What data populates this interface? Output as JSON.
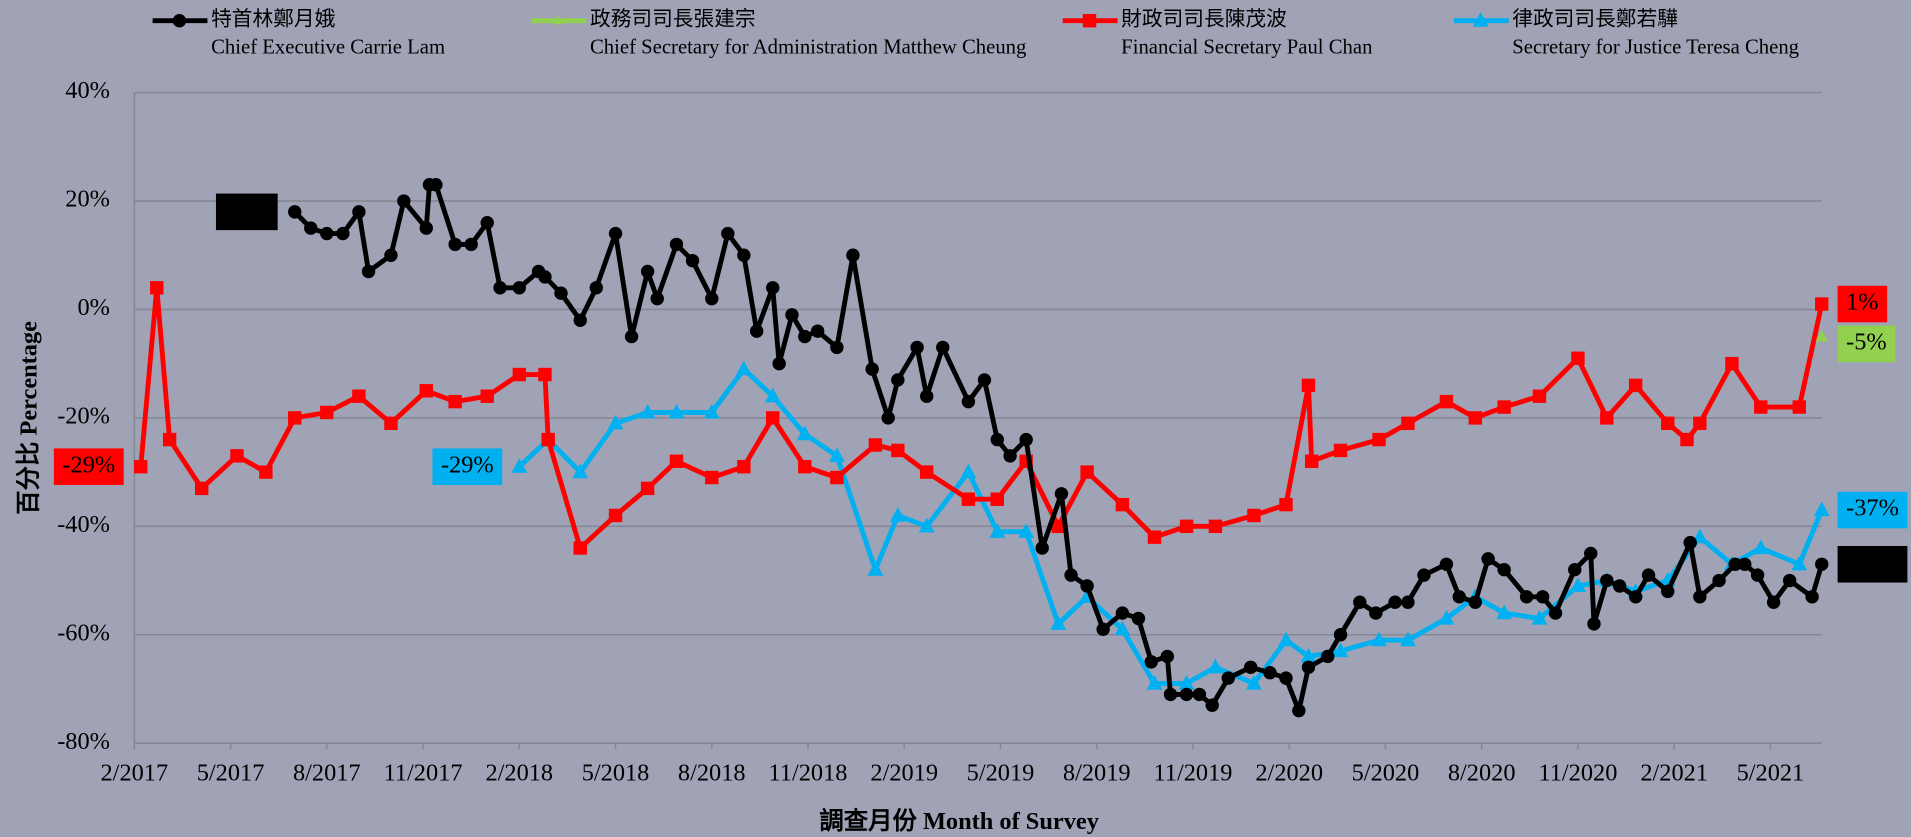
{
  "chart_data": {
    "type": "line",
    "x_label": "調查月份 Month of Survey",
    "y_label": "百分比 Percentage",
    "xlim": [
      0,
      52.6
    ],
    "xticks": [
      {
        "value": 0,
        "label": "2/2017"
      },
      {
        "value": 3,
        "label": "5/2017"
      },
      {
        "value": 6,
        "label": "8/2017"
      },
      {
        "value": 9,
        "label": "11/2017"
      },
      {
        "value": 12,
        "label": "2/2018"
      },
      {
        "value": 15,
        "label": "5/2018"
      },
      {
        "value": 18,
        "label": "8/2018"
      },
      {
        "value": 21,
        "label": "11/2018"
      },
      {
        "value": 24,
        "label": "2/2019"
      },
      {
        "value": 27,
        "label": "5/2019"
      },
      {
        "value": 30,
        "label": "8/2019"
      },
      {
        "value": 33,
        "label": "11/2019"
      },
      {
        "value": 36,
        "label": "2/2020"
      },
      {
        "value": 39,
        "label": "5/2020"
      },
      {
        "value": 42,
        "label": "8/2020"
      },
      {
        "value": 45,
        "label": "11/2020"
      },
      {
        "value": 48,
        "label": "2/2021"
      },
      {
        "value": 51,
        "label": "5/2021"
      }
    ],
    "ylim": [
      -80,
      40
    ],
    "yticks": [
      {
        "value": 40,
        "label": "40%"
      },
      {
        "value": 20,
        "label": "20%"
      },
      {
        "value": 0,
        "label": "0%"
      },
      {
        "value": -20,
        "label": "-20%"
      },
      {
        "value": -40,
        "label": "-40%"
      },
      {
        "value": -60,
        "label": "-60%"
      },
      {
        "value": -80,
        "label": "-80%"
      }
    ],
    "grid": true,
    "legend": "top",
    "series": [
      {
        "name": "特首林鄭月娥",
        "name_en": "Chief Executive Carrie Lam",
        "color": "#000000",
        "marker": "circle",
        "x": [
          5.0,
          5.5,
          6.0,
          6.5,
          7.0,
          7.3,
          8.0,
          8.4,
          9.1,
          9.2,
          9.4,
          10.0,
          10.5,
          11.0,
          11.4,
          12.0,
          12.6,
          12.8,
          13.3,
          13.9,
          14.4,
          15.0,
          15.5,
          16.0,
          16.3,
          16.9,
          17.4,
          18.0,
          18.5,
          19.0,
          19.4,
          19.9,
          20.1,
          20.5,
          20.9,
          21.3,
          21.9,
          22.4,
          23.0,
          23.5,
          23.8,
          24.4,
          24.7,
          25.2,
          26.0,
          26.5,
          26.9,
          27.3,
          27.8,
          28.3,
          28.9,
          29.2,
          29.7,
          30.2,
          30.8,
          31.3,
          31.7,
          32.2,
          32.3,
          32.8,
          33.2,
          33.6,
          34.1,
          34.8,
          35.4,
          35.9,
          36.3,
          36.6,
          37.2,
          37.6,
          38.2,
          38.7,
          39.3,
          39.7,
          40.2,
          40.9,
          41.3,
          41.8,
          42.2,
          42.7,
          43.4,
          43.9,
          44.3,
          44.9,
          45.4,
          45.5,
          45.9,
          46.3,
          46.8,
          47.2,
          47.8,
          48.5,
          48.8,
          49.4,
          49.9,
          50.2,
          50.6,
          51.1,
          51.6,
          52.3,
          52.6
        ],
        "values": [
          18,
          15,
          14,
          14,
          18,
          7,
          10,
          20,
          15,
          23,
          23,
          12,
          12,
          16,
          4,
          4,
          7,
          6,
          3,
          -2,
          4,
          14,
          -5,
          7,
          2,
          12,
          9,
          2,
          14,
          10,
          -4,
          4,
          -10,
          -1,
          -5,
          -4,
          -7,
          10,
          -11,
          -20,
          -13,
          -7,
          -16,
          -7,
          -17,
          -13,
          -24,
          -27,
          -24,
          -44,
          -34,
          -49,
          -51,
          -59,
          -56,
          -57,
          -65,
          -64,
          -71,
          -71,
          -71,
          -73,
          -68,
          -66,
          -67,
          -68,
          -74,
          -66,
          -64,
          -60,
          -54,
          -56,
          -54,
          -54,
          -49,
          -47,
          -53,
          -54,
          -46,
          -48,
          -53,
          -53,
          -56,
          -48,
          -45,
          -58,
          -50,
          -51,
          -53,
          -49,
          -52,
          -43,
          -53,
          -50,
          -47,
          -47,
          -49,
          -54,
          -50,
          -53,
          -47
        ],
        "value_labels": [
          "18%",
          null,
          null,
          null,
          null,
          null,
          null,
          null,
          null,
          null,
          null,
          null,
          null,
          null,
          null,
          null,
          null,
          null,
          null,
          null,
          null,
          null,
          null,
          null,
          null,
          null,
          null,
          null,
          null,
          null,
          null,
          null,
          null,
          null,
          null,
          null,
          null,
          null,
          null,
          null,
          null,
          null,
          null,
          null,
          null,
          null,
          null,
          null,
          null,
          null,
          null,
          null,
          null,
          null,
          null,
          null,
          null,
          null,
          null,
          null,
          null,
          null,
          null,
          null,
          null,
          null,
          null,
          null,
          null,
          null,
          null,
          null,
          null,
          null,
          null,
          null,
          null,
          null,
          null,
          null,
          null,
          null,
          null,
          null,
          null,
          null,
          null,
          null,
          null,
          null,
          null,
          null,
          null,
          null,
          null,
          null,
          null,
          null,
          null,
          null,
          "-47%"
        ]
      },
      {
        "name": "政務司司長張建宗",
        "name_en": "Chief Secretary for Administration Matthew Cheung",
        "color": "#92d050",
        "marker": "triangle",
        "x": [
          52.6
        ],
        "values": [
          -5
        ],
        "value_labels": [
          "-5%"
        ]
      },
      {
        "name": "財政司司長陳茂波",
        "name_en": "Financial Secretary Paul Chan",
        "color": "#ff0000",
        "marker": "square",
        "x": [
          0.2,
          0.7,
          1.1,
          2.1,
          3.2,
          4.1,
          5.0,
          6.0,
          7.0,
          8.0,
          9.1,
          10.0,
          11.0,
          12.0,
          12.8,
          12.9,
          13.9,
          15.0,
          16.0,
          16.9,
          18.0,
          19.0,
          19.9,
          20.9,
          21.9,
          23.1,
          23.8,
          24.7,
          26.0,
          26.9,
          27.8,
          28.8,
          29.7,
          30.8,
          31.8,
          32.8,
          33.7,
          34.9,
          35.9,
          36.6,
          36.7,
          37.6,
          38.8,
          39.7,
          40.9,
          41.8,
          42.7,
          43.8,
          45.0,
          45.9,
          46.8,
          47.8,
          48.4,
          48.8,
          49.8,
          50.7,
          51.9,
          52.6
        ],
        "values": [
          -29,
          4,
          -24,
          -33,
          -27,
          -30,
          -20,
          -19,
          -16,
          -21,
          -15,
          -17,
          -16,
          -12,
          -12,
          -24,
          -44,
          -38,
          -33,
          -28,
          -31,
          -29,
          -20,
          -29,
          -31,
          -25,
          -26,
          -30,
          -35,
          -35,
          -28,
          -40,
          -30,
          -36,
          -42,
          -40,
          -40,
          -38,
          -36,
          -14,
          -28,
          -26,
          -24,
          -21,
          -17,
          -20,
          -18,
          -16,
          -9,
          -20,
          -14,
          -21,
          -24,
          -21,
          -10,
          -18,
          -18,
          1
        ],
        "value_labels": [
          "-29%",
          null,
          null,
          null,
          null,
          null,
          null,
          null,
          null,
          null,
          null,
          null,
          null,
          null,
          null,
          null,
          null,
          null,
          null,
          null,
          null,
          null,
          null,
          null,
          null,
          null,
          null,
          null,
          null,
          null,
          null,
          null,
          null,
          null,
          null,
          null,
          null,
          null,
          null,
          null,
          null,
          null,
          null,
          null,
          null,
          null,
          null,
          null,
          null,
          null,
          null,
          null,
          null,
          null,
          null,
          null,
          null,
          "1%"
        ]
      },
      {
        "name": "律政司司長鄭若驊",
        "name_en": "Secretary for Justice Teresa Cheng",
        "color": "#00b0f0",
        "marker": "triangle",
        "x": [
          12.0,
          12.9,
          13.9,
          15.0,
          16.0,
          16.9,
          18.0,
          19.0,
          19.9,
          20.9,
          21.9,
          23.1,
          23.8,
          24.7,
          26.0,
          26.9,
          27.8,
          28.8,
          29.7,
          30.8,
          31.8,
          32.8,
          33.7,
          34.9,
          35.9,
          36.6,
          37.6,
          38.8,
          39.7,
          40.9,
          41.8,
          42.7,
          43.8,
          45.0,
          45.9,
          46.8,
          47.8,
          48.8,
          49.8,
          50.7,
          51.9,
          52.6
        ],
        "values": [
          -29,
          -24,
          -30,
          -21,
          -19,
          -19,
          -19,
          -11,
          -16,
          -23,
          -27,
          -48,
          -38,
          -40,
          -30,
          -41,
          -41,
          -58,
          -53,
          -59,
          -69,
          -69,
          -66,
          -69,
          -61,
          -64,
          -63,
          -61,
          -61,
          -57,
          -53,
          -56,
          -57,
          -51,
          -50,
          -52,
          -50,
          -42,
          -47,
          -44,
          -47,
          -37
        ],
        "value_labels": [
          "-29%",
          null,
          null,
          null,
          null,
          null,
          null,
          null,
          null,
          null,
          null,
          null,
          null,
          null,
          null,
          null,
          null,
          null,
          null,
          null,
          null,
          null,
          null,
          null,
          null,
          null,
          null,
          null,
          null,
          null,
          null,
          null,
          null,
          null,
          null,
          null,
          null,
          null,
          null,
          null,
          null,
          "-37%"
        ]
      }
    ]
  }
}
